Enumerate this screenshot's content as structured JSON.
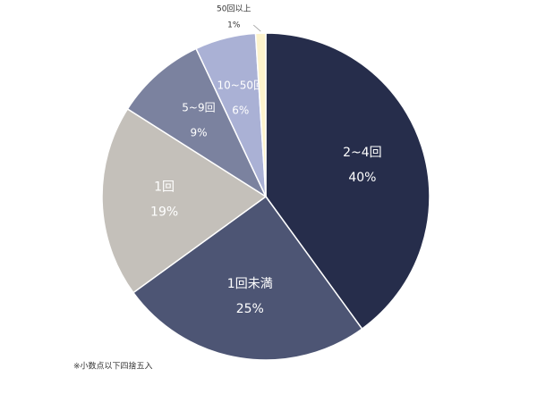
{
  "chart_data": {
    "type": "pie",
    "categories": [
      "2~4回",
      "1回未満",
      "1回",
      "5~9回",
      "10~50回",
      "50回以上"
    ],
    "values": [
      40,
      25,
      19,
      9,
      6,
      1
    ],
    "value_labels": [
      "40%",
      "25%",
      "19%",
      "9%",
      "6%",
      "1%"
    ],
    "colors": [
      "#262d4b",
      "#4d5574",
      "#c4c0ba",
      "#7b829f",
      "#aab1d5",
      "#fdf3cc"
    ],
    "note": "※小数点以下四捨五入"
  }
}
